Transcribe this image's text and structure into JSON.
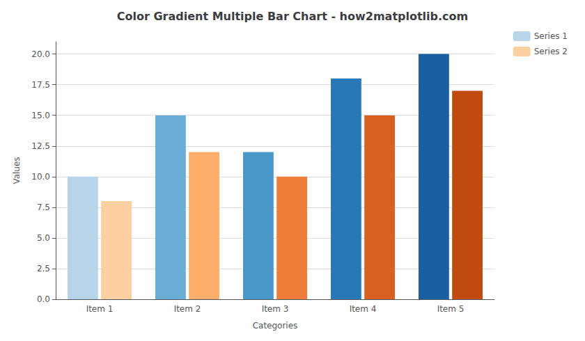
{
  "chart_data": {
    "type": "bar",
    "title": "Color Gradient Multiple Bar Chart - how2matplotlib.com",
    "xlabel": "Categories",
    "ylabel": "Values",
    "categories": [
      "Item 1",
      "Item 2",
      "Item 3",
      "Item 4",
      "Item 5"
    ],
    "series": [
      {
        "name": "Series 1",
        "color": "#b8d4e8",
        "colors": [
          "#b8d4e8",
          "#6aaed6",
          "#4a98c9",
          "#2878b8",
          "#1a5fa0"
        ],
        "values": [
          10,
          15,
          12,
          18,
          20
        ]
      },
      {
        "name": "Series 2",
        "color": "#fdd0a2",
        "colors": [
          "#fdd0a2",
          "#fdae6b",
          "#f07d3a",
          "#d96020",
          "#c04a10"
        ],
        "values": [
          8,
          12,
          10,
          15,
          17
        ]
      }
    ],
    "ylim": [
      0,
      21
    ],
    "yticks": [
      {
        "value": 0,
        "label": "0.0"
      },
      {
        "value": 2.5,
        "label": "2.5"
      },
      {
        "value": 5,
        "label": "5.0"
      },
      {
        "value": 7.5,
        "label": "7.5"
      },
      {
        "value": 10,
        "label": "10.0"
      },
      {
        "value": 12.5,
        "label": "12.5"
      },
      {
        "value": 15,
        "label": "15.0"
      },
      {
        "value": 17.5,
        "label": "17.5"
      },
      {
        "value": 20,
        "label": "20.0"
      }
    ],
    "grid": true,
    "legend": "upper right"
  }
}
